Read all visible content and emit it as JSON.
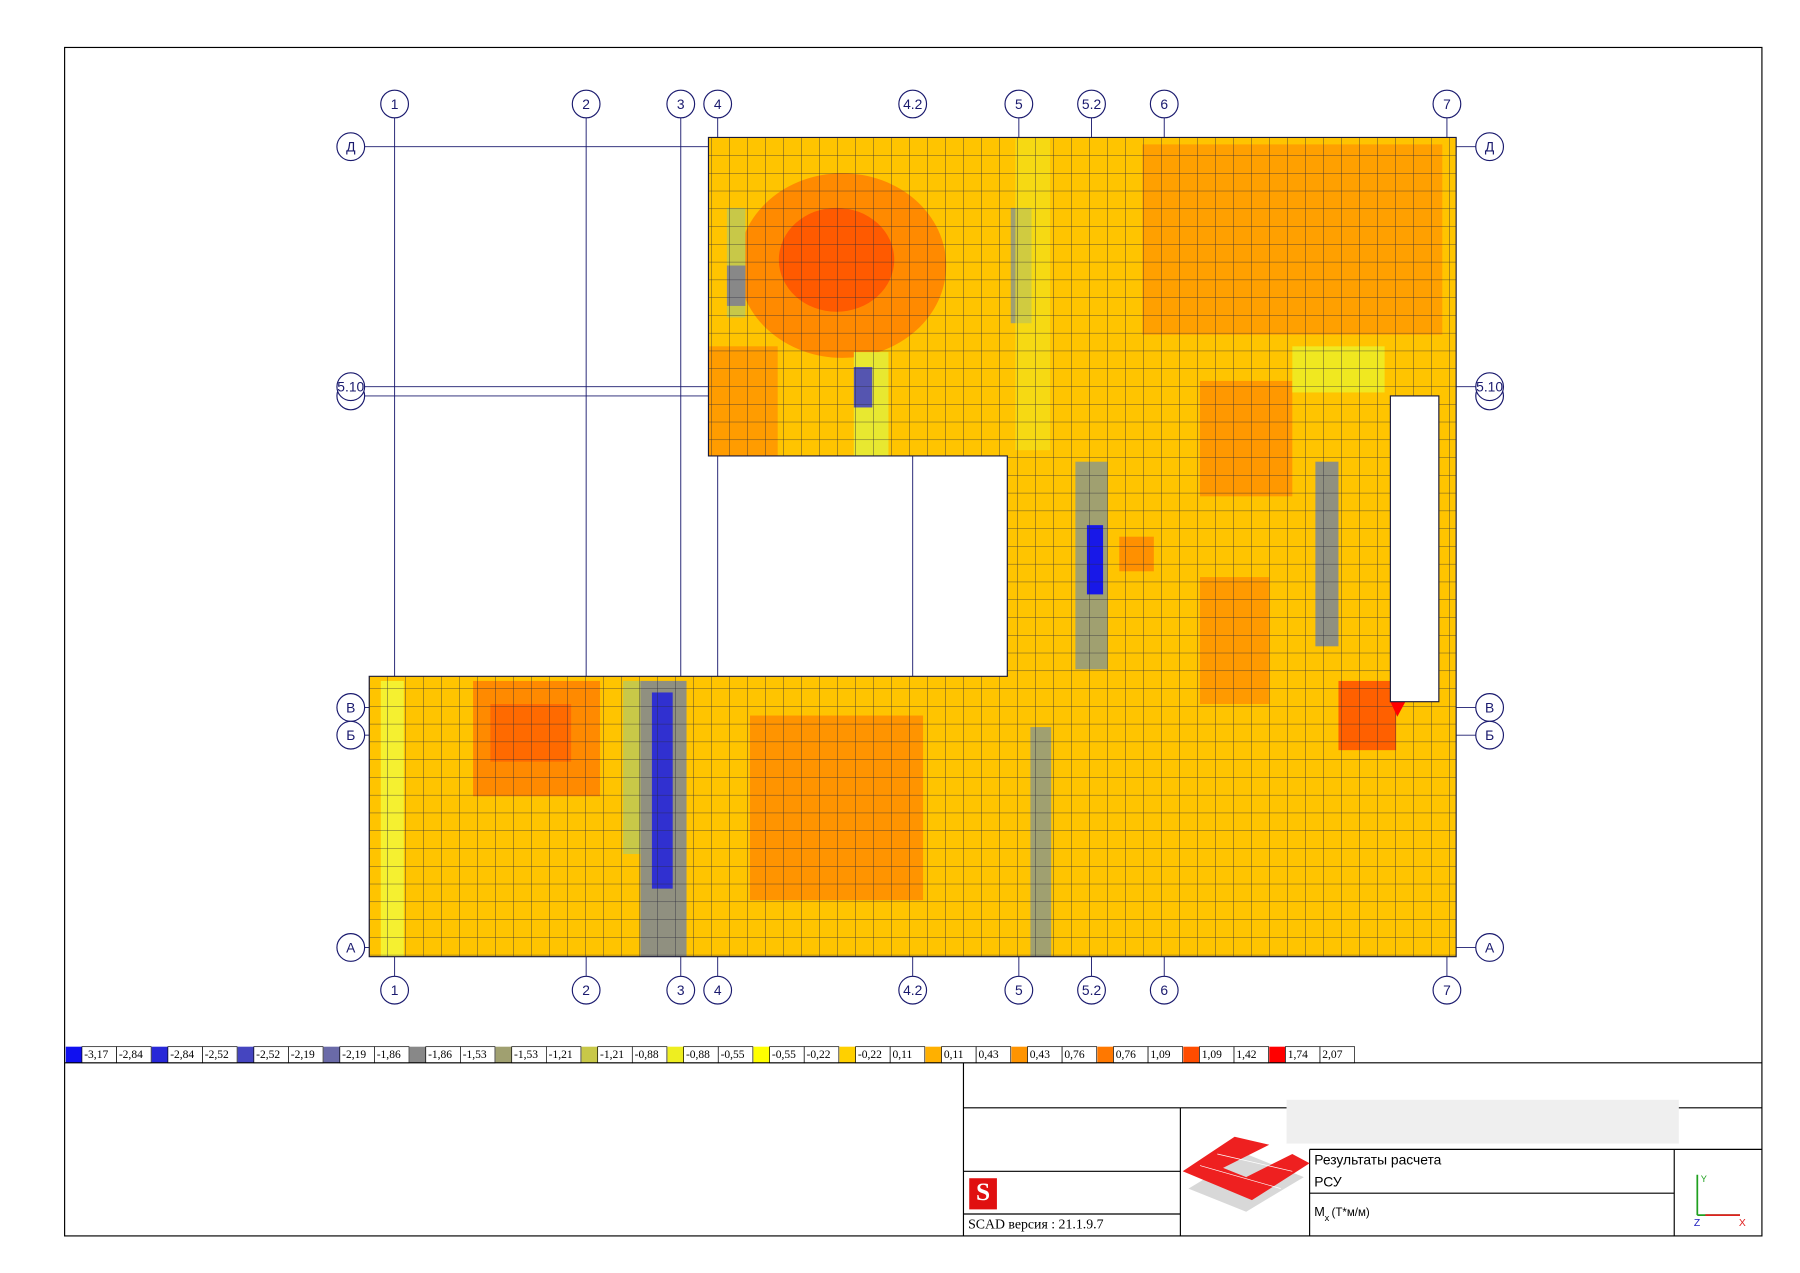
{
  "axes": {
    "columns": [
      "1",
      "2",
      "3",
      "4",
      "4.2",
      "5",
      "5.2",
      "6",
      "7"
    ],
    "rows": [
      "Д",
      "5.10",
      "В",
      "Б",
      "А"
    ]
  },
  "legend": [
    {
      "from": "-3,17",
      "to": "-2,84",
      "color": "#1010f0"
    },
    {
      "from": "-2,84",
      "to": "-2,52",
      "color": "#2828d8"
    },
    {
      "from": "-2,52",
      "to": "-2,19",
      "color": "#4545c0"
    },
    {
      "from": "-2,19",
      "to": "-1,86",
      "color": "#6a6aa8"
    },
    {
      "from": "-1,86",
      "to": "-1,53",
      "color": "#888888"
    },
    {
      "from": "-1,53",
      "to": "-1,21",
      "color": "#a0a070"
    },
    {
      "from": "-1,21",
      "to": "-0,88",
      "color": "#c8c848"
    },
    {
      "from": "-0,88",
      "to": "-0,55",
      "color": "#eeee20"
    },
    {
      "from": "-0,55",
      "to": "-0,22",
      "color": "#ffff00"
    },
    {
      "from": "-0,22",
      "to": "0,11",
      "color": "#ffd000"
    },
    {
      "from": "0,11",
      "to": "0,43",
      "color": "#ffb000"
    },
    {
      "from": "0,43",
      "to": "0,76",
      "color": "#ff9400"
    },
    {
      "from": "0,76",
      "to": "1,09",
      "color": "#ff7800"
    },
    {
      "from": "1,09",
      "to": "1,42",
      "color": "#ff4c00"
    },
    {
      "from": "1,74",
      "to": "2,07",
      "color": "#ff0000"
    }
  ],
  "title_block": {
    "result": "Результаты расчета",
    "load": "РСУ",
    "quantity": "M",
    "quantity_sub": "x",
    "quantity_unit": "(T*м/м)",
    "version": "SCAD версия : 21.1.9.7",
    "axis_y": "Y",
    "axis_z": "Z",
    "axis_x": "X"
  }
}
